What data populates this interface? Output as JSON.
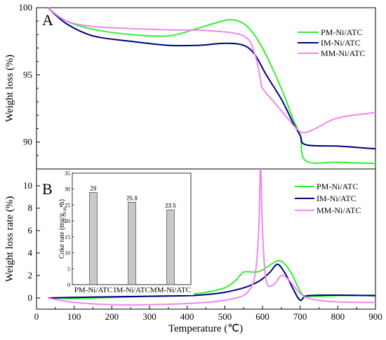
{
  "chart_data": [
    {
      "panel_label": "A",
      "type": "line",
      "ylabel": "Weight loss (%)",
      "xlim": [
        0,
        900
      ],
      "ylim": [
        88,
        100
      ],
      "yticks": [
        90,
        95,
        100
      ],
      "series": [
        {
          "name": "PM-Ni/ATC",
          "color": "#33ee33",
          "x": [
            30,
            80,
            150,
            250,
            350,
            420,
            480,
            520,
            560,
            600,
            650,
            680,
            700,
            715,
            800,
            900
          ],
          "y": [
            100,
            99.0,
            98.4,
            98.0,
            97.9,
            98.4,
            98.9,
            99.1,
            98.6,
            97.0,
            94.0,
            91.8,
            90.5,
            88.6,
            88.5,
            88.4
          ]
        },
        {
          "name": "IM-Ni/ATC",
          "color": "#000080",
          "x": [
            30,
            80,
            150,
            250,
            350,
            430,
            500,
            550,
            580,
            610,
            650,
            680,
            700,
            715,
            800,
            900
          ],
          "y": [
            100,
            98.8,
            97.9,
            97.5,
            97.2,
            97.2,
            97.35,
            97.2,
            96.5,
            95.0,
            93.2,
            91.5,
            90.5,
            89.8,
            89.7,
            89.5
          ]
        },
        {
          "name": "MM-Ni/ATC",
          "color": "#ee88ee",
          "x": [
            30,
            80,
            150,
            250,
            350,
            450,
            550,
            580,
            595,
            600,
            630,
            660,
            690,
            710,
            740,
            800,
            900
          ],
          "y": [
            100,
            99.0,
            98.6,
            98.45,
            98.35,
            98.3,
            97.9,
            96.5,
            94.6,
            94.0,
            93.0,
            92.0,
            91.0,
            90.7,
            91.0,
            91.8,
            92.2
          ]
        }
      ]
    },
    {
      "panel_label": "B",
      "type": "line",
      "ylabel": "Weight loss rate (%)",
      "xlabel": "Temperature (℃)",
      "xlim": [
        0,
        900
      ],
      "ylim": [
        -1,
        11.5
      ],
      "xticks": [
        0,
        100,
        200,
        300,
        400,
        500,
        600,
        700,
        800,
        900
      ],
      "yticks": [
        0,
        2,
        4,
        6,
        8,
        10
      ],
      "series": [
        {
          "name": "PM-Ni/ATC",
          "color": "#33ee33",
          "x": [
            30,
            100,
            200,
            300,
            400,
            450,
            500,
            530,
            550,
            580,
            600,
            640,
            660,
            680,
            700,
            720,
            800,
            900
          ],
          "y": [
            0,
            -0.05,
            0.05,
            0.15,
            0.3,
            0.5,
            0.9,
            1.6,
            2.3,
            2.3,
            2.5,
            3.3,
            3.0,
            2.0,
            0.6,
            0.15,
            0.2,
            0.25
          ]
        },
        {
          "name": "IM-Ni/ATC",
          "color": "#000080",
          "x": [
            30,
            100,
            200,
            300,
            400,
            450,
            500,
            550,
            580,
            600,
            620,
            640,
            660,
            680,
            700,
            720,
            800,
            900
          ],
          "y": [
            0,
            0.05,
            0.1,
            0.15,
            0.2,
            0.3,
            0.5,
            0.9,
            1.3,
            1.7,
            2.3,
            3.0,
            2.2,
            0.9,
            -0.2,
            0.2,
            0.25,
            0.2
          ]
        },
        {
          "name": "MM-Ni/ATC",
          "color": "#ee88ee",
          "x": [
            30,
            100,
            200,
            300,
            400,
            480,
            530,
            560,
            580,
            590,
            595,
            600,
            610,
            630,
            650,
            670,
            700,
            730,
            800,
            900
          ],
          "y": [
            0,
            -0.4,
            -0.6,
            -0.6,
            -0.5,
            -0.3,
            0.0,
            0.5,
            2.0,
            6.0,
            11.8,
            6.0,
            1.5,
            1.2,
            2.0,
            1.6,
            0.4,
            -0.1,
            -0.35,
            -0.4
          ]
        }
      ]
    },
    {
      "type": "bar",
      "inset": true,
      "ylabel": "Coke rate (mg/gₓₐₜ•h)",
      "ylabel_base": "Coke rate (mg/g",
      "ylabel_sub": "cat",
      "ylabel_end": "•h)",
      "ylim": [
        0,
        35
      ],
      "yticks": [
        0,
        5,
        10,
        15,
        20,
        25,
        30,
        35
      ],
      "categories": [
        "PM-Ni/ATC",
        "IM-Ni/ATC",
        "MM-Ni/ATC"
      ],
      "values": [
        29,
        25.9,
        23.5
      ],
      "value_labels": [
        "29",
        "25.9",
        "23.5"
      ],
      "bar_color": "#c8c8c8"
    }
  ]
}
